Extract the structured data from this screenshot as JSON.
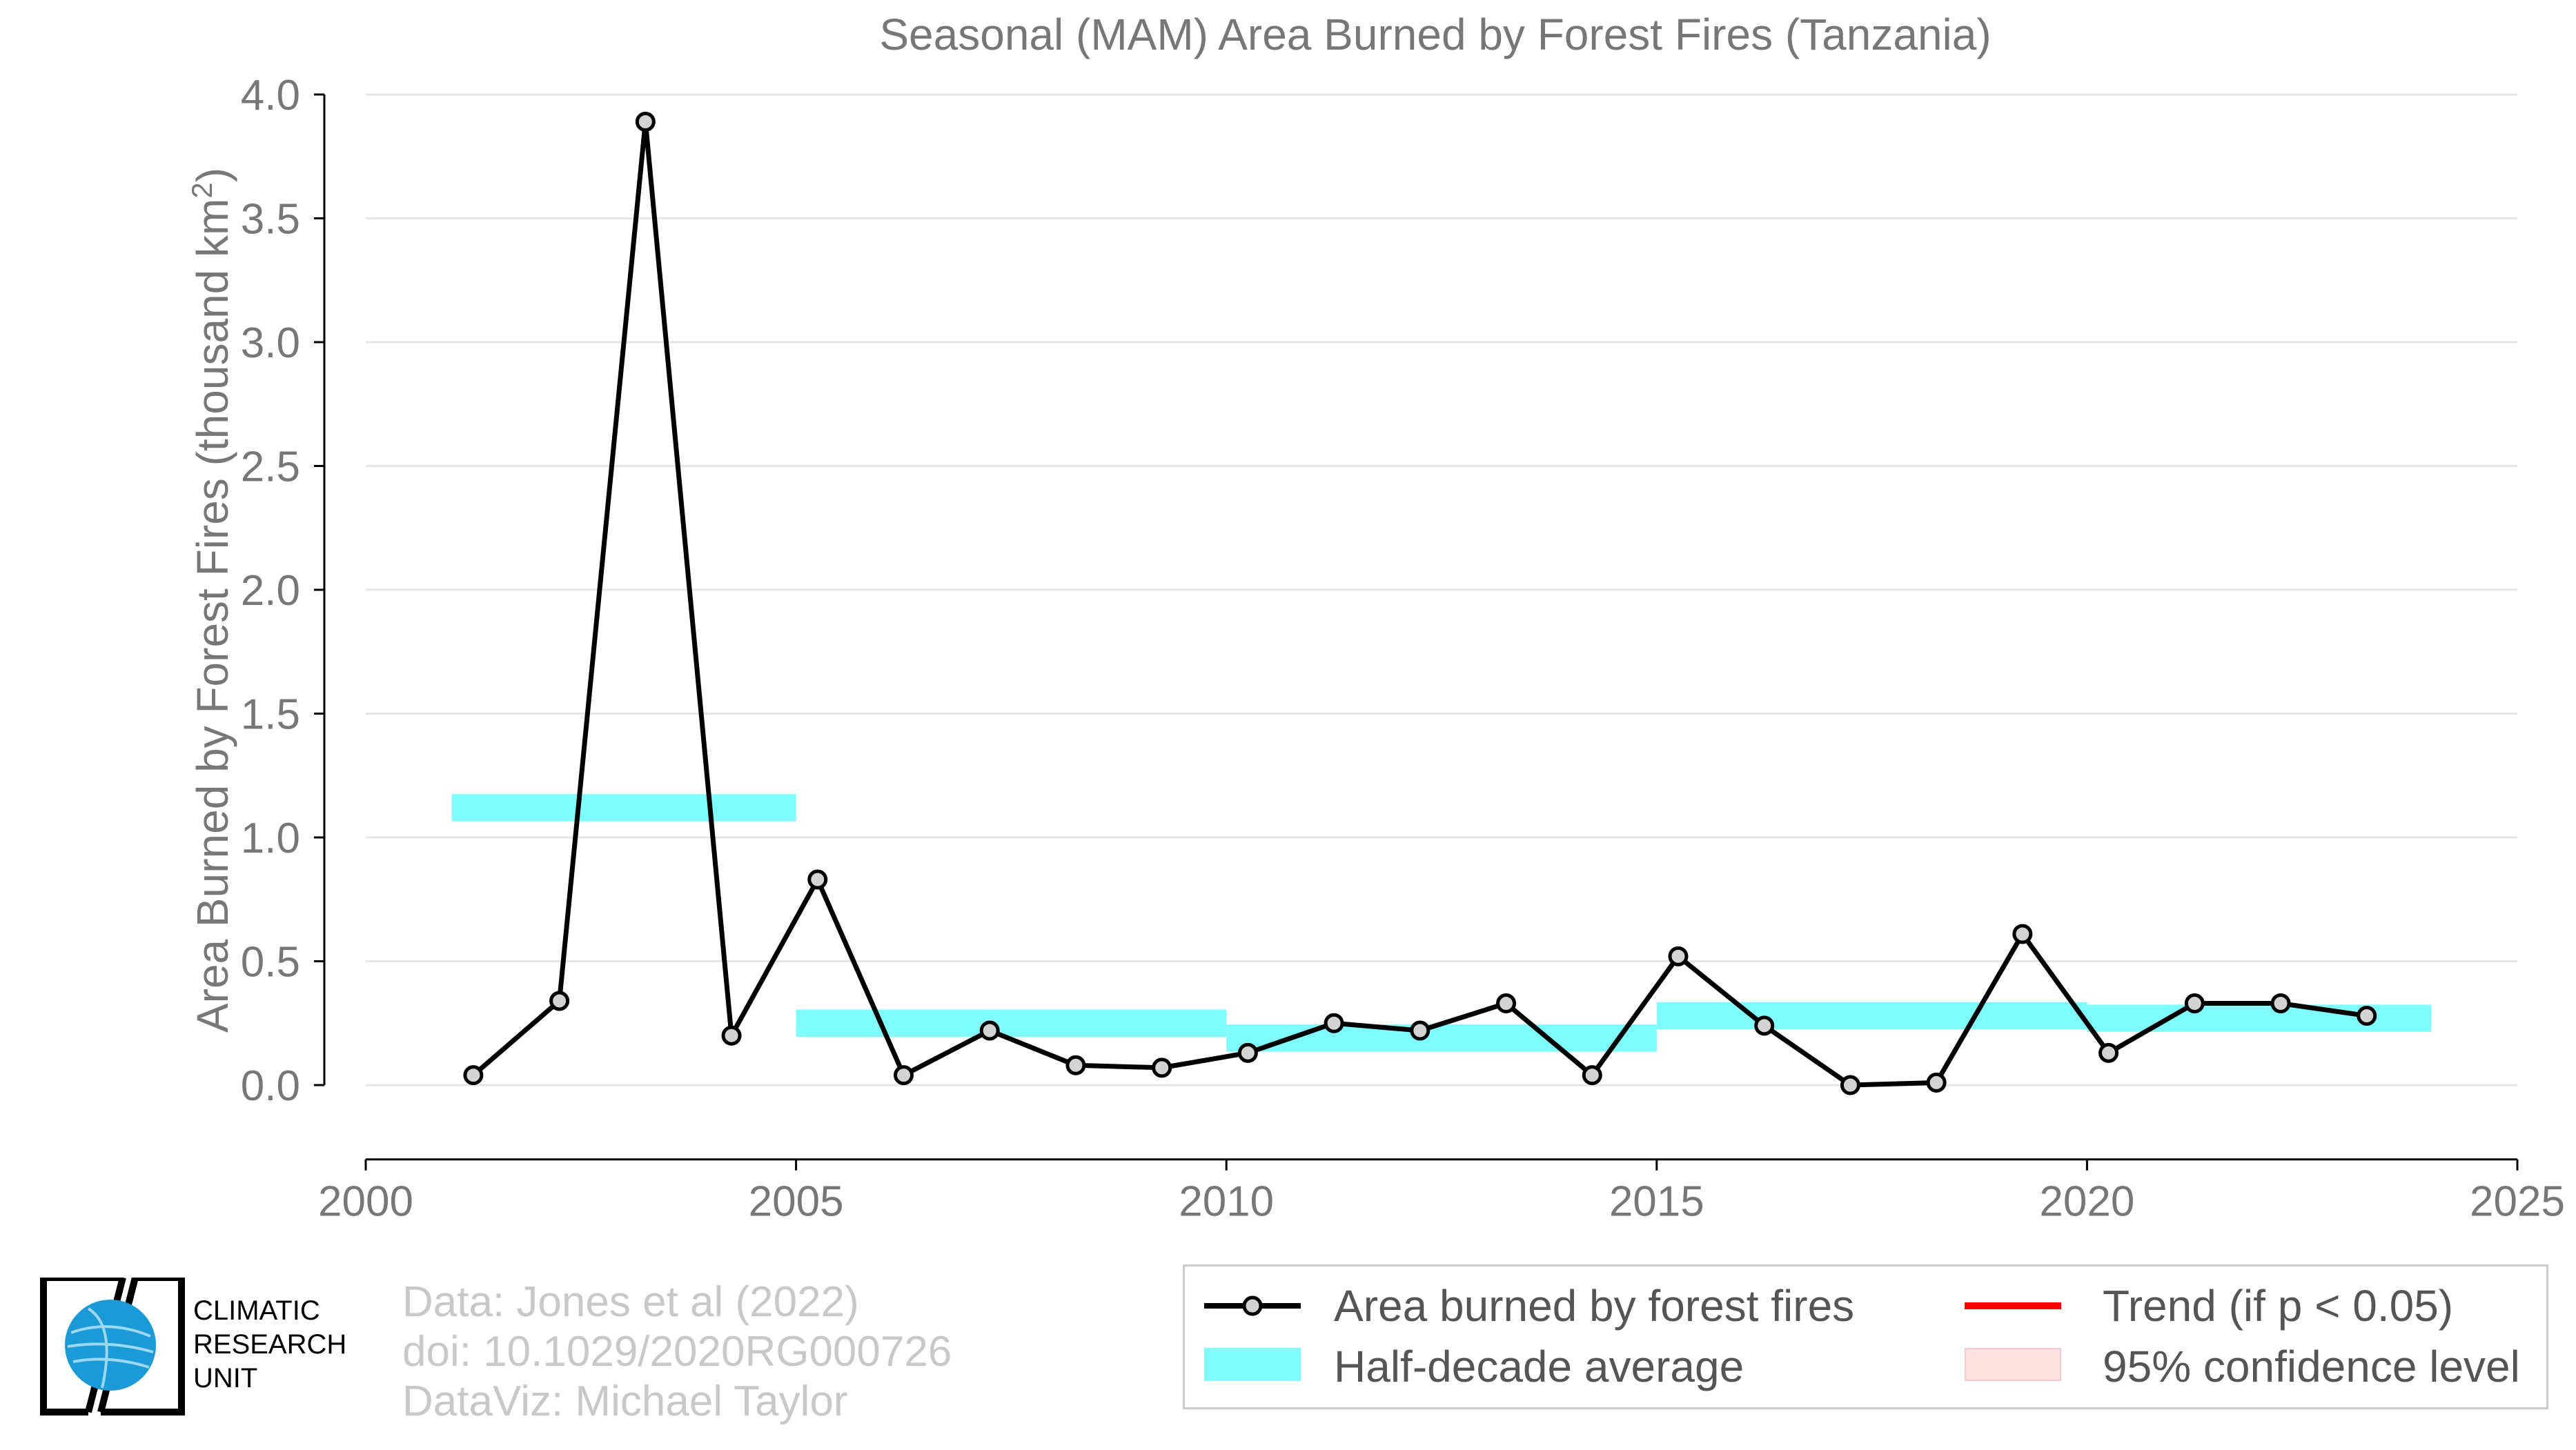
{
  "chart_data": {
    "type": "line",
    "title": "Seasonal (MAM) Area Burned by Forest Fires (Tanzania)",
    "ylabel_main": "Area Burned by Forest Fires (thousand km",
    "ylabel_sup": "2",
    "ylabel_close": ")",
    "xlabel": "",
    "xlim": [
      2000,
      2025
    ],
    "ylim": [
      -0.3,
      4.0
    ],
    "xticks": [
      "2000",
      "2005",
      "2010",
      "2015",
      "2020",
      "2025"
    ],
    "yticks": [
      "0.0",
      "0.5",
      "1.0",
      "1.5",
      "2.0",
      "2.5",
      "3.0",
      "3.5",
      "4.0"
    ],
    "grid": "horizontal",
    "series": [
      {
        "name": "Area burned by forest fires",
        "color": "#000000",
        "marker_fill": "#d3d3d3",
        "x": [
          2001.25,
          2002.25,
          2003.25,
          2004.25,
          2005.25,
          2006.25,
          2007.25,
          2008.25,
          2009.25,
          2010.25,
          2011.25,
          2012.25,
          2013.25,
          2014.25,
          2015.25,
          2016.25,
          2017.25,
          2018.25,
          2019.25,
          2020.25,
          2021.25,
          2022.25,
          2023.25
        ],
        "y": [
          0.04,
          0.34,
          3.89,
          0.2,
          0.83,
          0.04,
          0.22,
          0.08,
          0.07,
          0.13,
          0.25,
          0.22,
          0.33,
          0.04,
          0.52,
          0.24,
          0.0,
          0.01,
          0.61,
          0.13,
          0.33,
          0.33,
          0.28
        ]
      }
    ],
    "half_decade_average": {
      "name": "Half-decade average",
      "color": "#7ffcff",
      "segments": [
        {
          "x0": 2001,
          "x1": 2005,
          "y": 1.12
        },
        {
          "x0": 2005,
          "x1": 2010,
          "y": 0.25
        },
        {
          "x0": 2010,
          "x1": 2015,
          "y": 0.19
        },
        {
          "x0": 2015,
          "x1": 2020,
          "y": 0.28
        },
        {
          "x0": 2020,
          "x1": 2024,
          "y": 0.27
        }
      ]
    },
    "legend": {
      "placement": "bottom-right",
      "entries": [
        {
          "label": "Area burned by forest fires",
          "kind": "line-marker",
          "color": "#000000"
        },
        {
          "label": "Trend (if p < 0.05)",
          "kind": "line",
          "color": "#ff0000"
        },
        {
          "label": "Half-decade average",
          "kind": "band",
          "color": "#7ffcff"
        },
        {
          "label": "95% confidence level",
          "kind": "band",
          "color": "#ffe0e0"
        }
      ]
    }
  },
  "footer": {
    "source_line1": "Data: Jones et al (2022)",
    "source_line2": "doi: 10.1029/2020RG000726",
    "source_line3": "DataViz: Michael Taylor"
  },
  "logo": {
    "line1": "CLIMATIC",
    "line2": "RESEARCH",
    "line3": "UNIT",
    "globe_color": "#1a9ad6"
  }
}
